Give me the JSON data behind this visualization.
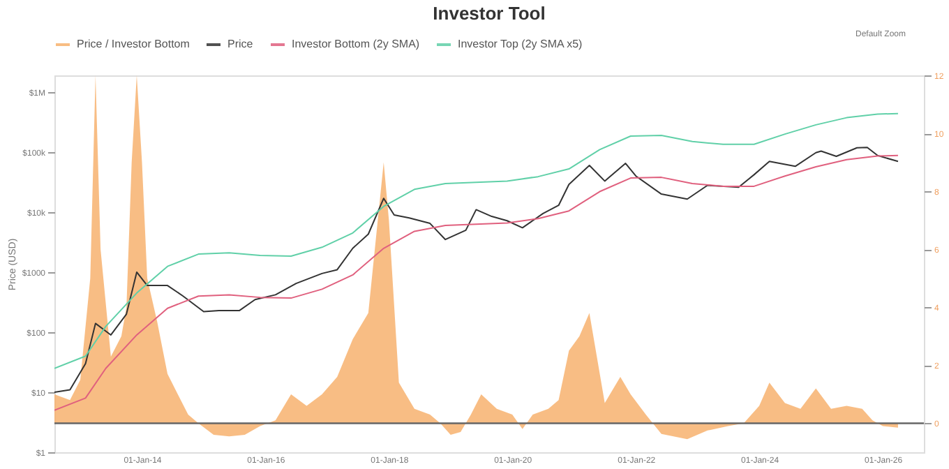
{
  "chart_data": {
    "type": "line",
    "title": "Investor Tool",
    "ylabel": "Price (USD)",
    "log": "y",
    "legend": "top",
    "grid": false,
    "xlim": [
      "2012-08",
      "2026-09"
    ],
    "xticks": [
      {
        "value": "2014-01-01",
        "label": "01-Jan-14"
      },
      {
        "value": "2016-01-01",
        "label": "01-Jan-16"
      },
      {
        "value": "2018-01-01",
        "label": "01-Jan-18"
      },
      {
        "value": "2020-01-01",
        "label": "01-Jan-20"
      },
      {
        "value": "2022-01-01",
        "label": "01-Jan-22"
      },
      {
        "value": "2024-01-01",
        "label": "01-Jan-24"
      },
      {
        "value": "2026-01-01",
        "label": "01-Jan-26"
      }
    ],
    "ylim": [
      1,
      1900000
    ],
    "yticks": [
      {
        "value": 1,
        "label": "$1"
      },
      {
        "value": 10,
        "label": "$10"
      },
      {
        "value": 100,
        "label": "$100"
      },
      {
        "value": 1000,
        "label": "$1000"
      },
      {
        "value": 10000,
        "label": "$10k"
      },
      {
        "value": 100000,
        "label": "$100k"
      },
      {
        "value": 1000000,
        "label": "$1M"
      }
    ],
    "y2lim": [
      -1,
      12
    ],
    "y2ticks": [
      0,
      2,
      4,
      6,
      8,
      10,
      12
    ],
    "ref_lines": [
      {
        "axis": "y2",
        "value": 0,
        "color": "#666666"
      }
    ],
    "annotations": [
      "Default Zoom"
    ],
    "series": [
      {
        "name": "Price / Investor Bottom",
        "type": "area",
        "axis": "y2",
        "color": "#f7b26e",
        "x": [
          "2012-08",
          "2012-11",
          "2013-01",
          "2013-03",
          "2013-04",
          "2013-05",
          "2013-07",
          "2013-09",
          "2013-10",
          "2013-11",
          "2013-12",
          "2014-01",
          "2014-02",
          "2014-04",
          "2014-06",
          "2014-08",
          "2014-10",
          "2014-12",
          "2015-03",
          "2015-06",
          "2015-09",
          "2015-12",
          "2016-03",
          "2016-06",
          "2016-09",
          "2016-12",
          "2017-03",
          "2017-06",
          "2017-09",
          "2017-12",
          "2018-01",
          "2018-03",
          "2018-06",
          "2018-09",
          "2018-11",
          "2019-01",
          "2019-03",
          "2019-05",
          "2019-07",
          "2019-10",
          "2020-01",
          "2020-03",
          "2020-05",
          "2020-08",
          "2020-10",
          "2020-12",
          "2021-02",
          "2021-04",
          "2021-07",
          "2021-10",
          "2021-12",
          "2022-03",
          "2022-06",
          "2022-11",
          "2023-03",
          "2023-07",
          "2023-10",
          "2024-01",
          "2024-03",
          "2024-06",
          "2024-09",
          "2024-12",
          "2025-03",
          "2025-06",
          "2025-09",
          "2025-11",
          "2026-01",
          "2026-04"
        ],
        "values": [
          1.0,
          0.8,
          1.5,
          5,
          12,
          6,
          2.3,
          3,
          4,
          9,
          12,
          9,
          5,
          3.5,
          1.7,
          1.0,
          0.3,
          0.0,
          -0.4,
          -0.45,
          -0.4,
          -0.1,
          0.1,
          1.0,
          0.6,
          1.0,
          1.6,
          2.9,
          3.8,
          9.0,
          7,
          1.4,
          0.5,
          0.3,
          0.0,
          -0.4,
          -0.3,
          0.3,
          1.0,
          0.5,
          0.3,
          -0.2,
          0.3,
          0.5,
          0.8,
          2.5,
          3.0,
          3.8,
          0.7,
          1.6,
          1.0,
          0.3,
          -0.37,
          -0.55,
          -0.25,
          -0.1,
          0.0,
          0.6,
          1.4,
          0.7,
          0.5,
          1.2,
          0.5,
          0.6,
          0.5,
          0.1,
          -0.1,
          -0.15
        ]
      },
      {
        "name": "Price",
        "color": "#333333",
        "x": [
          "2012-08",
          "2012-11",
          "2013-02",
          "2013-04",
          "2013-07",
          "2013-10",
          "2013-12",
          "2014-02",
          "2014-06",
          "2014-09",
          "2015-01",
          "2015-04",
          "2015-08",
          "2015-11",
          "2016-03",
          "2016-07",
          "2016-12",
          "2017-03",
          "2017-06",
          "2017-09",
          "2017-12",
          "2018-02",
          "2018-05",
          "2018-09",
          "2018-12",
          "2019-04",
          "2019-06",
          "2019-09",
          "2019-12",
          "2020-03",
          "2020-07",
          "2020-10",
          "2020-12",
          "2021-04",
          "2021-07",
          "2021-11",
          "2022-01",
          "2022-06",
          "2022-11",
          "2023-03",
          "2023-09",
          "2023-12",
          "2024-03",
          "2024-08",
          "2024-12",
          "2025-01",
          "2025-04",
          "2025-08",
          "2025-10",
          "2025-12",
          "2026-04"
        ],
        "values": [
          10,
          11,
          30,
          140,
          90,
          200,
          1000,
          600,
          600,
          400,
          220,
          230,
          230,
          350,
          420,
          650,
          950,
          1100,
          2500,
          4300,
          17000,
          9000,
          8000,
          6500,
          3500,
          5000,
          11000,
          8500,
          7200,
          5500,
          9500,
          13000,
          29000,
          60000,
          33000,
          65000,
          40000,
          20000,
          16500,
          28000,
          26000,
          42000,
          70000,
          58000,
          98000,
          104000,
          85000,
          118000,
          120000,
          88000,
          70000
        ]
      },
      {
        "name": "Investor Bottom (2y SMA)",
        "color": "#e0607e",
        "x": [
          "2012-08",
          "2013-02",
          "2013-06",
          "2013-12",
          "2014-06",
          "2014-12",
          "2015-06",
          "2015-12",
          "2016-06",
          "2016-12",
          "2017-06",
          "2017-12",
          "2018-06",
          "2018-12",
          "2019-06",
          "2019-12",
          "2020-06",
          "2020-12",
          "2021-06",
          "2021-12",
          "2022-06",
          "2022-12",
          "2023-06",
          "2023-12",
          "2024-06",
          "2024-12",
          "2025-06",
          "2025-12",
          "2026-04"
        ],
        "values": [
          5,
          8,
          25,
          90,
          250,
          400,
          420,
          380,
          370,
          520,
          900,
          2500,
          4800,
          6000,
          6300,
          6600,
          7800,
          10500,
          22000,
          37000,
          38000,
          30000,
          27000,
          27000,
          40000,
          57000,
          75000,
          86000,
          88000
        ]
      },
      {
        "name": "Investor Top (2y SMA x5)",
        "color": "#60d0a8",
        "x": [
          "2012-08",
          "2013-02",
          "2013-06",
          "2013-12",
          "2014-06",
          "2014-12",
          "2015-06",
          "2015-12",
          "2016-06",
          "2016-12",
          "2017-06",
          "2017-12",
          "2018-06",
          "2018-12",
          "2019-06",
          "2019-12",
          "2020-06",
          "2020-12",
          "2021-06",
          "2021-12",
          "2022-06",
          "2022-12",
          "2023-06",
          "2023-12",
          "2024-06",
          "2024-12",
          "2025-06",
          "2025-12",
          "2026-04"
        ],
        "values": [
          25,
          40,
          125,
          450,
          1250,
          2000,
          2100,
          1900,
          1850,
          2600,
          4500,
          12500,
          24000,
          30000,
          31500,
          33000,
          39000,
          52500,
          110000,
          185000,
          190000,
          150000,
          135000,
          135000,
          200000,
          285000,
          375000,
          430000,
          440000
        ]
      }
    ]
  }
}
